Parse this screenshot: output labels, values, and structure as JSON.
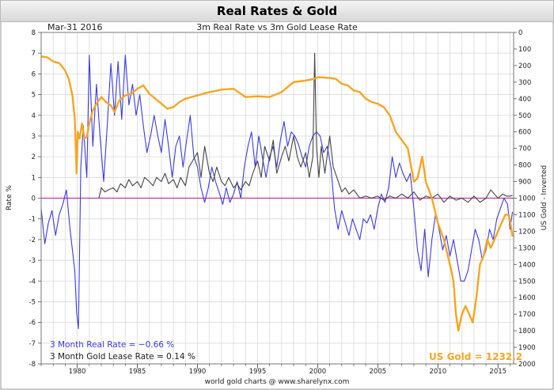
{
  "chart_data": {
    "type": "line",
    "title": "Real Rates & Gold",
    "subtitle": "3m Real Rate vs 3m Gold Lease Rate",
    "date_label": "Mar-31  2016",
    "footer": "world gold charts @ www.sharelynx.com",
    "left_axis": {
      "label": "Rate %",
      "range": [
        -8,
        8
      ],
      "ticks": [
        8,
        7,
        6,
        5,
        4,
        3,
        2,
        1,
        0,
        -1,
        -2,
        -3,
        -4,
        -5,
        -6,
        -7,
        -8
      ]
    },
    "right_axis": {
      "label": "US Gold - Inverted",
      "range": [
        0,
        2000
      ],
      "inverted": true,
      "ticks": [
        0,
        100,
        200,
        300,
        400,
        500,
        600,
        700,
        800,
        900,
        1000,
        1100,
        1200,
        1300,
        1400,
        1500,
        1600,
        1700,
        1800,
        1900,
        2000
      ]
    },
    "x_axis": {
      "range": [
        1977,
        2016.3
      ],
      "ticks": [
        1980,
        1985,
        1990,
        1995,
        2000,
        2005,
        2010,
        2015
      ]
    },
    "zero_line_color": "#cc33aa",
    "series": [
      {
        "name": "3 Month Real Rate",
        "legend": "3 Month Real Rate = −0.66 %",
        "axis": "left",
        "color": "#3b3bdd",
        "x": [
          1977.0,
          1977.3,
          1977.6,
          1977.9,
          1978.2,
          1978.5,
          1978.8,
          1979.1,
          1979.4,
          1979.6,
          1979.8,
          1979.95,
          1980.1,
          1980.3,
          1980.5,
          1980.8,
          1981.0,
          1981.3,
          1981.6,
          1981.9,
          1982.2,
          1982.5,
          1982.8,
          1983.1,
          1983.4,
          1983.7,
          1984.0,
          1984.3,
          1984.6,
          1984.9,
          1985.2,
          1985.5,
          1985.8,
          1986.1,
          1986.4,
          1986.7,
          1987.0,
          1987.3,
          1987.6,
          1987.9,
          1988.2,
          1988.5,
          1988.8,
          1989.1,
          1989.4,
          1989.7,
          1990.0,
          1990.3,
          1990.6,
          1990.9,
          1991.2,
          1991.5,
          1991.8,
          1992.1,
          1992.4,
          1992.7,
          1993.0,
          1993.3,
          1993.6,
          1993.9,
          1994.2,
          1994.5,
          1994.8,
          1995.1,
          1995.4,
          1995.7,
          1996.0,
          1996.3,
          1996.6,
          1996.9,
          1997.2,
          1997.5,
          1997.8,
          1998.1,
          1998.4,
          1998.7,
          1999.0,
          1999.3,
          1999.6,
          1999.9,
          2000.2,
          2000.5,
          2000.8,
          2001.1,
          2001.4,
          2001.7,
          2002.0,
          2002.3,
          2002.6,
          2002.9,
          2003.2,
          2003.5,
          2003.8,
          2004.1,
          2004.4,
          2004.7,
          2005.0,
          2005.3,
          2005.6,
          2005.9,
          2006.2,
          2006.5,
          2006.8,
          2007.1,
          2007.4,
          2007.7,
          2008.0,
          2008.3,
          2008.6,
          2008.9,
          2009.2,
          2009.5,
          2009.8,
          2010.1,
          2010.4,
          2010.7,
          2011.0,
          2011.3,
          2011.6,
          2011.9,
          2012.2,
          2012.5,
          2012.8,
          2013.1,
          2013.4,
          2013.7,
          2014.0,
          2014.3,
          2014.6,
          2014.9,
          2015.2,
          2015.5,
          2015.8,
          2016.0,
          2016.2
        ],
        "y": [
          -0.5,
          -2.2,
          -1.2,
          -0.6,
          -1.8,
          -0.8,
          -0.3,
          0.4,
          -1.5,
          -2.5,
          -3.5,
          -5.5,
          -6.3,
          1.5,
          3.5,
          1.0,
          6.9,
          2.5,
          5.5,
          3.0,
          0.8,
          3.5,
          6.5,
          4.0,
          6.6,
          3.8,
          6.9,
          4.5,
          5.5,
          4.0,
          5.0,
          3.5,
          2.2,
          3.0,
          4.0,
          3.0,
          2.2,
          3.8,
          2.5,
          1.0,
          2.5,
          3.0,
          1.5,
          2.8,
          4.0,
          2.0,
          1.5,
          0.5,
          -0.2,
          0.5,
          1.5,
          0.8,
          0.3,
          -0.3,
          0.5,
          -0.2,
          0.2,
          0.8,
          0.0,
          1.5,
          2.5,
          3.2,
          1.5,
          3.0,
          2.0,
          1.0,
          2.0,
          2.5,
          1.5,
          2.8,
          3.7,
          2.5,
          3.2,
          3.0,
          2.6,
          2.0,
          1.5,
          2.5,
          3.0,
          3.2,
          3.0,
          2.2,
          2.5,
          1.5,
          -0.5,
          -1.5,
          -0.6,
          -1.2,
          -1.8,
          -1.0,
          -1.5,
          -2.0,
          -1.0,
          -1.2,
          -0.8,
          -1.5,
          -0.5,
          0.2,
          -0.2,
          0.5,
          2.0,
          1.0,
          1.7,
          1.2,
          0.8,
          1.2,
          -0.5,
          -2.5,
          -3.5,
          -1.5,
          -3.8,
          -2.0,
          -0.8,
          -1.5,
          -2.5,
          -1.8,
          -2.8,
          -2.0,
          -3.0,
          -4.0,
          -4.0,
          -3.5,
          -2.5,
          -1.5,
          -2.0,
          -3.0,
          -2.5,
          -1.5,
          -2.0,
          -1.0,
          -0.5,
          0.0,
          -0.3,
          -1.5,
          -0.66
        ]
      },
      {
        "name": "3 Month Gold Lease Rate",
        "legend": "3 Month Gold Lease Rate = 0.14 %",
        "axis": "left",
        "color": "#444444",
        "x": [
          1981.8,
          1982.0,
          1982.3,
          1982.6,
          1983.0,
          1983.3,
          1983.6,
          1984.0,
          1984.3,
          1984.6,
          1985.0,
          1985.3,
          1985.6,
          1986.0,
          1986.3,
          1986.6,
          1987.0,
          1987.3,
          1987.6,
          1988.0,
          1988.3,
          1988.6,
          1989.0,
          1989.3,
          1989.6,
          1990.0,
          1990.3,
          1990.6,
          1991.0,
          1991.3,
          1991.6,
          1992.0,
          1992.3,
          1992.6,
          1993.0,
          1993.3,
          1993.6,
          1994.0,
          1994.3,
          1994.6,
          1995.0,
          1995.3,
          1995.6,
          1996.0,
          1996.3,
          1996.6,
          1997.0,
          1997.3,
          1997.6,
          1998.0,
          1998.3,
          1998.6,
          1999.0,
          1999.3,
          1999.6,
          1999.75,
          1999.9,
          2000.1,
          2000.3,
          2000.6,
          2001.0,
          2001.3,
          2001.6,
          2002.0,
          2002.3,
          2002.6,
          2003.0,
          2003.5,
          2004.0,
          2004.5,
          2005.0,
          2005.5,
          2006.0,
          2006.5,
          2007.0,
          2007.5,
          2008.0,
          2008.5,
          2009.0,
          2009.5,
          2010.0,
          2010.5,
          2011.0,
          2011.5,
          2012.0,
          2012.5,
          2013.0,
          2013.5,
          2014.0,
          2014.4,
          2014.7,
          2015.0,
          2015.4,
          2015.7,
          2016.0,
          2016.2
        ],
        "y": [
          0.0,
          0.5,
          0.3,
          0.4,
          0.5,
          0.3,
          0.7,
          0.5,
          0.9,
          0.6,
          0.8,
          0.5,
          1.0,
          0.8,
          0.6,
          1.0,
          0.8,
          1.2,
          0.7,
          0.9,
          0.5,
          1.0,
          0.6,
          1.5,
          1.8,
          2.2,
          1.0,
          2.5,
          1.2,
          0.8,
          1.5,
          0.8,
          0.6,
          1.0,
          0.5,
          0.7,
          0.4,
          0.8,
          0.6,
          1.2,
          1.8,
          1.0,
          2.5,
          1.8,
          2.8,
          1.2,
          2.0,
          2.5,
          1.8,
          3.0,
          2.0,
          1.5,
          2.2,
          1.0,
          2.0,
          7.0,
          2.5,
          1.0,
          2.5,
          1.2,
          3.0,
          1.5,
          1.0,
          0.3,
          0.5,
          0.2,
          0.4,
          0.0,
          0.1,
          0.0,
          0.1,
          -0.1,
          0.1,
          0.0,
          0.2,
          0.0,
          0.3,
          -0.1,
          0.1,
          0.0,
          0.2,
          -0.2,
          0.1,
          -0.1,
          0.0,
          -0.2,
          0.1,
          -0.2,
          0.0,
          0.4,
          0.2,
          0.0,
          0.2,
          0.1,
          0.1,
          0.14
        ]
      },
      {
        "name": "US Gold",
        "legend": "US Gold = 1232.2",
        "axis": "right",
        "color": "#f5a623",
        "x": [
          1977.0,
          1977.5,
          1978.0,
          1978.5,
          1979.0,
          1979.3,
          1979.6,
          1979.8,
          1979.95,
          1980.05,
          1980.2,
          1980.4,
          1980.6,
          1980.8,
          1981.0,
          1981.3,
          1981.6,
          1982.0,
          1982.4,
          1982.8,
          1983.1,
          1983.5,
          1984.0,
          1984.5,
          1985.0,
          1985.5,
          1986.0,
          1986.5,
          1987.0,
          1987.5,
          1988.0,
          1988.5,
          1989.0,
          1990.0,
          1991.0,
          1992.0,
          1993.0,
          1994.0,
          1995.0,
          1996.0,
          1997.0,
          1997.5,
          1998.0,
          1999.0,
          1999.7,
          2000.0,
          2001.0,
          2001.5,
          2002.0,
          2002.5,
          2003.0,
          2003.5,
          2004.0,
          2004.5,
          2005.0,
          2005.5,
          2006.0,
          2006.5,
          2007.0,
          2007.5,
          2008.0,
          2008.3,
          2008.7,
          2009.0,
          2009.5,
          2010.0,
          2010.5,
          2011.0,
          2011.3,
          2011.5,
          2011.7,
          2012.0,
          2012.3,
          2012.6,
          2012.9,
          2013.2,
          2013.5,
          2013.8,
          2014.1,
          2014.4,
          2014.7,
          2015.0,
          2015.3,
          2015.6,
          2015.9,
          2016.1,
          2016.2
        ],
        "y": [
          145,
          150,
          175,
          185,
          230,
          280,
          380,
          520,
          850,
          600,
          640,
          550,
          640,
          630,
          550,
          470,
          430,
          390,
          420,
          440,
          480,
          410,
          380,
          370,
          340,
          320,
          370,
          400,
          430,
          460,
          450,
          420,
          400,
          380,
          360,
          345,
          340,
          390,
          385,
          390,
          360,
          330,
          300,
          290,
          280,
          270,
          275,
          280,
          310,
          320,
          350,
          360,
          400,
          420,
          430,
          450,
          500,
          600,
          650,
          700,
          900,
          880,
          750,
          900,
          1000,
          1150,
          1250,
          1400,
          1500,
          1700,
          1800,
          1700,
          1650,
          1700,
          1750,
          1600,
          1400,
          1350,
          1250,
          1300,
          1250,
          1200,
          1150,
          1100,
          1100,
          1180,
          1232.2
        ]
      }
    ]
  }
}
